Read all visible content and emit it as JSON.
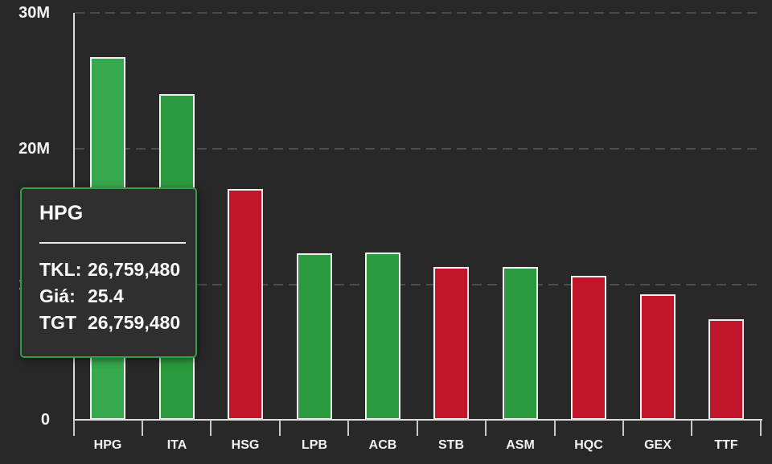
{
  "chart_data": {
    "type": "bar",
    "title": "",
    "xlabel": "",
    "ylabel": "",
    "categories": [
      "HPG",
      "ITA",
      "HSG",
      "LPB",
      "ACB",
      "STB",
      "ASM",
      "HQC",
      "GEX",
      "TTF"
    ],
    "values": [
      26759480,
      24050000,
      17050000,
      12300000,
      12350000,
      11300000,
      11300000,
      10650000,
      9250000,
      7400000
    ],
    "directions": [
      "up",
      "up",
      "down",
      "up",
      "up",
      "down",
      "up",
      "down",
      "down",
      "down"
    ],
    "highlight_index": 0,
    "y_ticks": [
      "30M",
      "20M",
      "10M",
      "0"
    ],
    "y_tick_values": [
      30000000,
      20000000,
      10000000,
      0
    ],
    "ylim": [
      0,
      30000000
    ],
    "grid": "dashed-horizontal",
    "legend": "none",
    "colors": {
      "up": "#2b9a3e",
      "up_highlight": "#36a84d",
      "down": "#c2152b",
      "bar_border": "#f0f0f0",
      "background": "#282828",
      "axis": "#dcdcdc",
      "gridline": "#4c4c4c",
      "label_text": "#f2f2f2"
    }
  },
  "tooltip": {
    "title": "HPG",
    "border_color": "#2f9e44",
    "rows": [
      {
        "label": "TKL:",
        "value": "26,759,480"
      },
      {
        "label": "Giá:",
        "value": "25.4"
      },
      {
        "label": "TGT",
        "value": "26,759,480"
      }
    ]
  }
}
